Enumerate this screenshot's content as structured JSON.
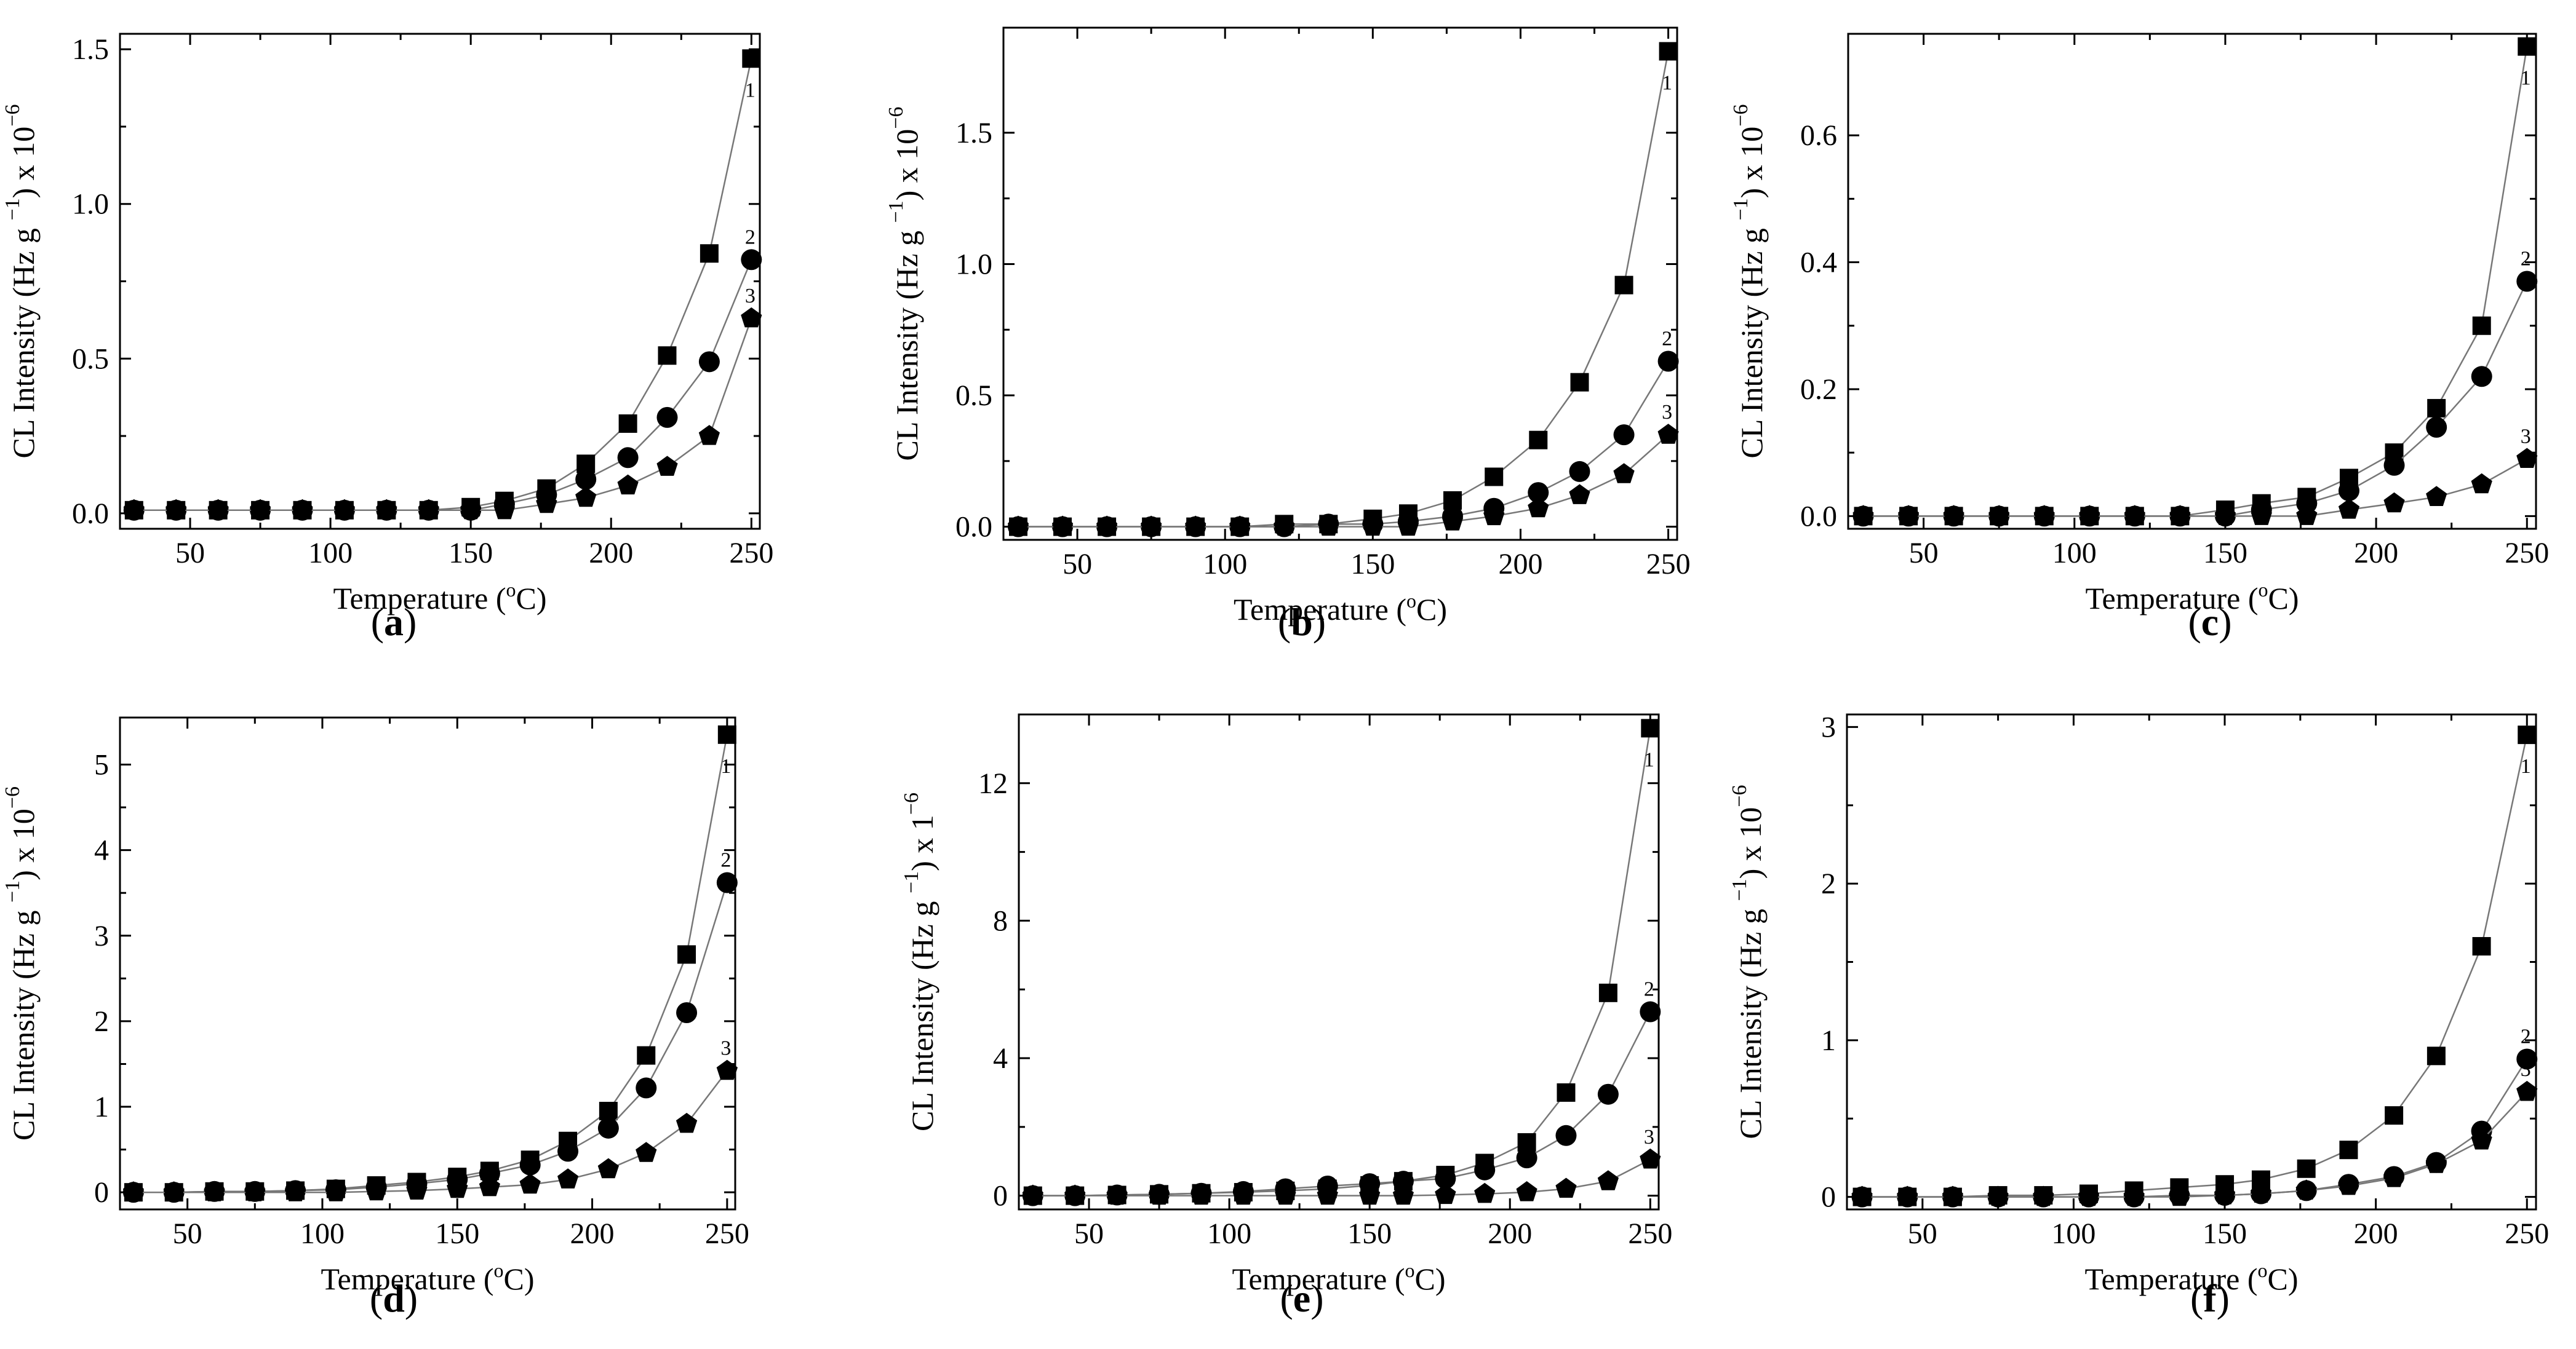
{
  "chart_data": [
    {
      "type": "line",
      "panel": "a",
      "caption": "a",
      "xlabel": "Temperature",
      "xlabel_unit_sup": "o",
      "xlabel_unit": "C",
      "ylabel_main": "CL Intensity (Hz g",
      "ylabel_sup1": "−1",
      "ylabel_mid": ") x 10",
      "ylabel_sup2": "−6",
      "xlim": [
        25,
        253
      ],
      "ylim": [
        -0.05,
        1.55
      ],
      "xticks": [
        50,
        100,
        150,
        200,
        250
      ],
      "yticks": [
        0.0,
        0.5,
        1.0,
        1.5
      ],
      "ytick_labels": [
        "0.0",
        "0.5",
        "1.0",
        "1.5"
      ],
      "x": [
        30,
        45,
        60,
        75,
        90,
        105,
        120,
        135,
        150,
        162,
        177,
        191,
        206,
        220,
        235,
        250
      ],
      "series": [
        {
          "name": "1",
          "marker": "square",
          "values": [
            0.01,
            0.01,
            0.01,
            0.01,
            0.01,
            0.01,
            0.01,
            0.01,
            0.02,
            0.04,
            0.08,
            0.16,
            0.29,
            0.51,
            0.84,
            1.47
          ]
        },
        {
          "name": "2",
          "marker": "circle",
          "values": [
            0.01,
            0.01,
            0.01,
            0.01,
            0.01,
            0.01,
            0.01,
            0.01,
            0.01,
            0.03,
            0.06,
            0.11,
            0.18,
            0.31,
            0.49,
            0.82
          ]
        },
        {
          "name": "3",
          "marker": "pentagon",
          "values": [
            0.01,
            0.01,
            0.01,
            0.01,
            0.01,
            0.01,
            0.01,
            0.01,
            0.01,
            0.01,
            0.03,
            0.05,
            0.09,
            0.15,
            0.25,
            0.63
          ]
        }
      ]
    },
    {
      "type": "line",
      "panel": "b",
      "caption": "b",
      "xlabel": "Temperature",
      "xlabel_unit_sup": "o",
      "xlabel_unit": "C",
      "ylabel_main": "CL Intensity (Hz g",
      "ylabel_sup1": "−1",
      "ylabel_mid": ") x 10",
      "ylabel_sup2": "−6",
      "xlim": [
        25,
        253
      ],
      "ylim": [
        -0.05,
        1.9
      ],
      "xticks": [
        50,
        100,
        150,
        200,
        250
      ],
      "yticks": [
        0.0,
        0.5,
        1.0,
        1.5
      ],
      "ytick_labels": [
        "0.0",
        "0.5",
        "1.0",
        "1.5"
      ],
      "x": [
        30,
        45,
        60,
        75,
        90,
        105,
        120,
        135,
        150,
        162,
        177,
        191,
        206,
        220,
        235,
        250
      ],
      "series": [
        {
          "name": "1",
          "marker": "square",
          "values": [
            0.0,
            0.0,
            0.0,
            0.0,
            0.0,
            0.0,
            0.01,
            0.01,
            0.03,
            0.05,
            0.1,
            0.19,
            0.33,
            0.55,
            0.92,
            1.81
          ]
        },
        {
          "name": "2",
          "marker": "circle",
          "values": [
            0.0,
            0.0,
            0.0,
            0.0,
            0.0,
            0.0,
            0.0,
            0.01,
            0.01,
            0.02,
            0.04,
            0.07,
            0.13,
            0.21,
            0.35,
            0.63
          ]
        },
        {
          "name": "3",
          "marker": "pentagon",
          "values": [
            0.0,
            0.0,
            0.0,
            0.0,
            0.0,
            0.0,
            0.0,
            0.0,
            0.0,
            0.0,
            0.02,
            0.04,
            0.07,
            0.12,
            0.2,
            0.35
          ]
        }
      ]
    },
    {
      "type": "line",
      "panel": "c",
      "caption": "c",
      "xlabel": "Temperature",
      "xlabel_unit_sup": "o",
      "xlabel_unit": "C",
      "ylabel_main": "CL Intensity (Hz g",
      "ylabel_sup1": "−1",
      "ylabel_mid": ") x 10",
      "ylabel_sup2": "−6",
      "xlim": [
        25,
        253
      ],
      "ylim": [
        -0.02,
        0.76
      ],
      "xticks": [
        50,
        100,
        150,
        200,
        250
      ],
      "yticks": [
        0.0,
        0.2,
        0.4,
        0.6
      ],
      "ytick_labels": [
        "0.0",
        "0.2",
        "0.4",
        "0.6"
      ],
      "x": [
        30,
        45,
        60,
        75,
        90,
        105,
        120,
        135,
        150,
        162,
        177,
        191,
        206,
        220,
        235,
        250
      ],
      "series": [
        {
          "name": "1",
          "marker": "square",
          "values": [
            0.0,
            0.0,
            0.0,
            0.0,
            0.0,
            0.0,
            0.0,
            0.0,
            0.01,
            0.02,
            0.03,
            0.06,
            0.1,
            0.17,
            0.3,
            0.74
          ]
        },
        {
          "name": "2",
          "marker": "circle",
          "values": [
            0.0,
            0.0,
            0.0,
            0.0,
            0.0,
            0.0,
            0.0,
            0.0,
            0.0,
            0.01,
            0.02,
            0.04,
            0.08,
            0.14,
            0.22,
            0.37
          ]
        },
        {
          "name": "3",
          "marker": "pentagon",
          "values": [
            0.0,
            0.0,
            0.0,
            0.0,
            0.0,
            0.0,
            0.0,
            0.0,
            0.0,
            0.0,
            0.0,
            0.01,
            0.02,
            0.03,
            0.05,
            0.09
          ]
        }
      ]
    },
    {
      "type": "line",
      "panel": "d",
      "caption": "d",
      "xlabel": "Temperature",
      "xlabel_unit_sup": "o",
      "xlabel_unit": "C",
      "ylabel_main": "CL Intensity (Hz g",
      "ylabel_sup1": "−1",
      "ylabel_mid": ") x 10",
      "ylabel_sup2": "−6",
      "xlim": [
        25,
        253
      ],
      "ylim": [
        -0.2,
        5.55
      ],
      "xticks": [
        50,
        100,
        150,
        200,
        250
      ],
      "yticks": [
        0,
        1,
        2,
        3,
        4,
        5
      ],
      "ytick_labels": [
        "0",
        "1",
        "2",
        "3",
        "4",
        "5"
      ],
      "x": [
        30,
        45,
        60,
        75,
        90,
        105,
        120,
        135,
        150,
        162,
        177,
        191,
        206,
        220,
        235,
        250
      ],
      "series": [
        {
          "name": "1",
          "marker": "square",
          "values": [
            0.0,
            0.0,
            0.01,
            0.01,
            0.02,
            0.04,
            0.08,
            0.12,
            0.18,
            0.25,
            0.38,
            0.6,
            0.95,
            1.6,
            2.78,
            5.35
          ]
        },
        {
          "name": "2",
          "marker": "circle",
          "values": [
            0.0,
            0.0,
            0.01,
            0.01,
            0.02,
            0.03,
            0.06,
            0.1,
            0.15,
            0.22,
            0.32,
            0.48,
            0.75,
            1.22,
            2.1,
            3.62
          ]
        },
        {
          "name": "3",
          "marker": "pentagon",
          "values": [
            0.0,
            0.0,
            0.0,
            0.0,
            0.0,
            0.0,
            0.01,
            0.02,
            0.04,
            0.06,
            0.09,
            0.15,
            0.27,
            0.46,
            0.8,
            1.42
          ]
        }
      ]
    },
    {
      "type": "line",
      "panel": "e",
      "caption": "e",
      "xlabel": "Temperature",
      "xlabel_unit_sup": "o",
      "xlabel_unit": "C",
      "ylabel_main": "CL Intensity (Hz g",
      "ylabel_sup1": "−1",
      "ylabel_mid": ") x 1",
      "ylabel_sup2": "−6",
      "xlim": [
        25,
        253
      ],
      "ylim": [
        -0.4,
        14.0
      ],
      "xticks": [
        50,
        100,
        150,
        200,
        250
      ],
      "yticks": [
        0,
        4,
        8,
        12
      ],
      "ytick_labels": [
        "0",
        "4",
        "8",
        "12"
      ],
      "x": [
        30,
        45,
        60,
        75,
        90,
        105,
        120,
        135,
        150,
        162,
        177,
        191,
        206,
        220,
        235,
        250
      ],
      "series": [
        {
          "name": "1",
          "marker": "square",
          "values": [
            0.0,
            0.0,
            0.02,
            0.04,
            0.07,
            0.1,
            0.14,
            0.2,
            0.3,
            0.42,
            0.6,
            0.95,
            1.55,
            3.0,
            5.9,
            13.6
          ]
        },
        {
          "name": "2",
          "marker": "circle",
          "values": [
            0.0,
            0.0,
            0.02,
            0.04,
            0.07,
            0.12,
            0.2,
            0.28,
            0.35,
            0.42,
            0.5,
            0.75,
            1.1,
            1.75,
            2.95,
            5.35
          ]
        },
        {
          "name": "3",
          "marker": "pentagon",
          "values": [
            0.0,
            0.0,
            0.0,
            0.0,
            0.0,
            0.0,
            0.0,
            0.0,
            0.0,
            0.0,
            0.02,
            0.05,
            0.1,
            0.2,
            0.42,
            1.05
          ]
        }
      ]
    },
    {
      "type": "line",
      "panel": "f",
      "caption": "f",
      "xlabel": "Temperature",
      "xlabel_unit_sup": "o",
      "xlabel_unit": "C",
      "ylabel_main": "CL Intensity (Hz g",
      "ylabel_sup1": "−1",
      "ylabel_mid": ") x 10",
      "ylabel_sup2": "−6",
      "xlim": [
        25,
        253
      ],
      "ylim": [
        -0.08,
        3.08
      ],
      "xticks": [
        50,
        100,
        150,
        200,
        250
      ],
      "yticks": [
        0,
        1,
        2,
        3
      ],
      "ytick_labels": [
        "0",
        "1",
        "2",
        "3"
      ],
      "x": [
        30,
        45,
        60,
        75,
        90,
        105,
        120,
        135,
        150,
        162,
        177,
        191,
        206,
        220,
        235,
        250
      ],
      "series": [
        {
          "name": "1",
          "marker": "square",
          "values": [
            0.0,
            0.0,
            0.0,
            0.01,
            0.01,
            0.02,
            0.04,
            0.06,
            0.08,
            0.11,
            0.18,
            0.3,
            0.52,
            0.9,
            1.6,
            2.95
          ]
        },
        {
          "name": "2",
          "marker": "circle",
          "values": [
            0.0,
            0.0,
            0.0,
            0.0,
            0.0,
            0.0,
            0.0,
            0.01,
            0.01,
            0.02,
            0.04,
            0.08,
            0.13,
            0.22,
            0.42,
            0.88
          ]
        },
        {
          "name": "3",
          "marker": "pentagon",
          "values": [
            0.0,
            0.0,
            0.0,
            0.0,
            0.0,
            0.0,
            0.0,
            0.0,
            0.01,
            0.02,
            0.04,
            0.07,
            0.12,
            0.21,
            0.36,
            0.67
          ]
        }
      ]
    }
  ]
}
